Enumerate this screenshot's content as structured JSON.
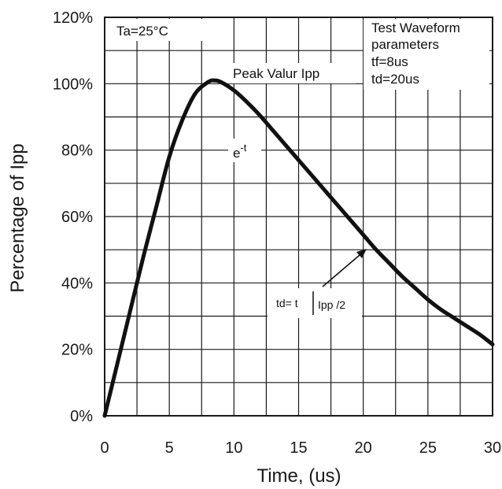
{
  "chart_data": {
    "type": "line",
    "xlabel": "Time, (us)",
    "ylabel": "Percentage of Ipp",
    "xlim": [
      0,
      30
    ],
    "ylim": [
      0,
      120
    ],
    "x_ticks": [
      "0",
      "5",
      "10",
      "15",
      "20",
      "25",
      "30"
    ],
    "y_ticks": [
      "0%",
      "20%",
      "40%",
      "60%",
      "80%",
      "100%",
      "120%"
    ],
    "grid": true,
    "series": [
      {
        "x": [
          0,
          1,
          2,
          3,
          4,
          5,
          6,
          7,
          8,
          8.5,
          9,
          10,
          11,
          12,
          13,
          14,
          15,
          16,
          17,
          18,
          19,
          20,
          21,
          22,
          23,
          24,
          25,
          26,
          27,
          28,
          29,
          30
        ],
        "y": [
          0,
          16,
          32,
          48,
          63,
          78,
          89,
          97,
          100.5,
          101,
          100.5,
          98,
          94.5,
          90.5,
          86,
          81.5,
          77,
          72.5,
          68,
          63.5,
          59,
          54.5,
          50,
          46,
          42,
          38.5,
          35,
          32,
          29.5,
          27,
          24.5,
          21.5
        ]
      }
    ],
    "annotations": {
      "ta": "Ta=25°C",
      "test_title": "Test Waveform",
      "test_params": "parameters",
      "tf": "tf=8us",
      "td": "td=20us",
      "peak": "Peak Valur Ipp",
      "exp_base": "e",
      "exp_power": "-t",
      "td_def_left": "td= t",
      "td_def_right": "Ipp /2"
    }
  }
}
